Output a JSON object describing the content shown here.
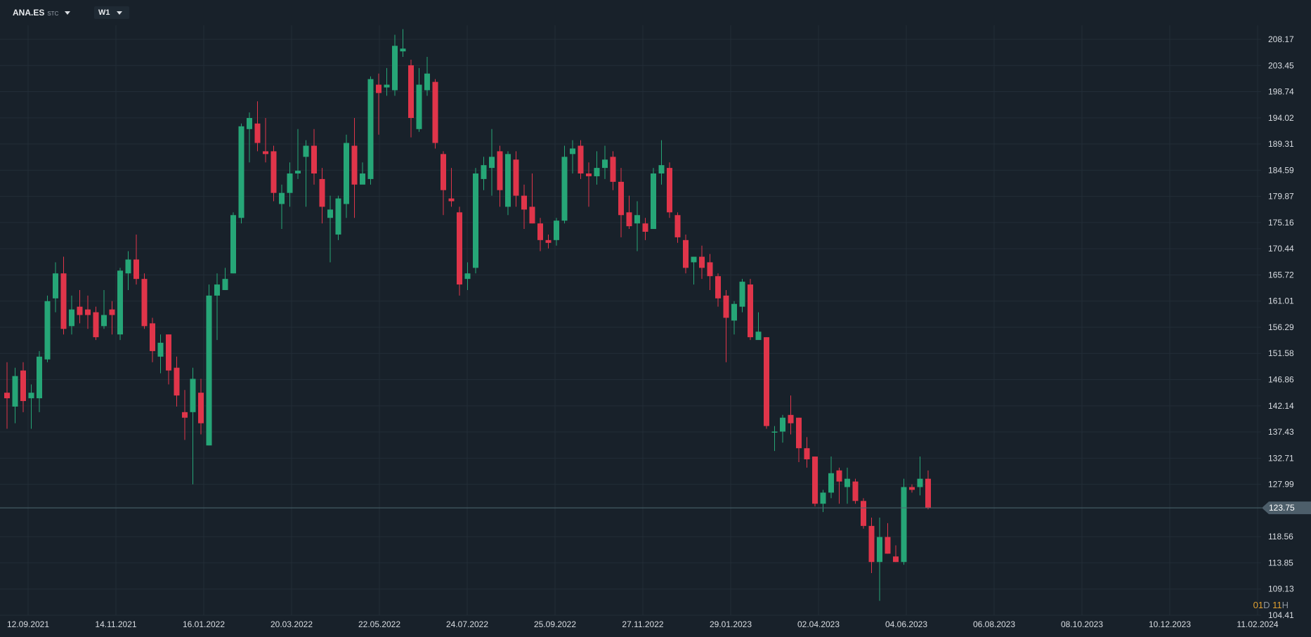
{
  "header": {
    "symbol": "ANA.ES",
    "exchange": "STC",
    "timeframe": "W1"
  },
  "countdown": {
    "days": "01",
    "days_unit": "D",
    "hours": "11",
    "hours_unit": "H"
  },
  "colors": {
    "up": "#26a677",
    "down": "#e0354a",
    "grid": "#222d37",
    "background": "#18212a",
    "price_line": "#4d6872",
    "price_tag": "#4d5e6a"
  },
  "chart_data": {
    "type": "candlestick",
    "grid": true,
    "y_axis_position": "right",
    "ylim": [
      104.41,
      210
    ],
    "y_ticks": [
      "208.17",
      "203.45",
      "198.74",
      "194.02",
      "189.31",
      "184.59",
      "179.87",
      "175.16",
      "170.44",
      "165.72",
      "161.01",
      "156.29",
      "151.58",
      "146.86",
      "142.14",
      "137.43",
      "132.71",
      "127.99",
      "118.56",
      "113.85",
      "109.13",
      "104.41"
    ],
    "x_ticks": [
      "12.09.2021",
      "14.11.2021",
      "16.01.2022",
      "20.03.2022",
      "22.05.2022",
      "24.07.2022",
      "25.09.2022",
      "27.11.2022",
      "29.01.2023",
      "02.04.2023",
      "04.06.2023",
      "06.08.2023",
      "08.10.2023",
      "10.12.2023",
      "11.02.2024"
    ],
    "current_price": "123.75",
    "candles": [
      {
        "date": "06.09.2021",
        "o": 144.5,
        "h": 150,
        "l": 138,
        "c": 143.5
      },
      {
        "date": "13.09.2021",
        "o": 142,
        "h": 149,
        "l": 139,
        "c": 147.5
      },
      {
        "date": "20.09.2021",
        "o": 148.5,
        "h": 150,
        "l": 141,
        "c": 143
      },
      {
        "date": "27.09.2021",
        "o": 143.5,
        "h": 146,
        "l": 138,
        "c": 144.5
      },
      {
        "date": "04.10.2021",
        "o": 143.5,
        "h": 152,
        "l": 141,
        "c": 151
      },
      {
        "date": "11.10.2021",
        "o": 150.5,
        "h": 162,
        "l": 150,
        "c": 161
      },
      {
        "date": "18.10.2021",
        "o": 161.5,
        "h": 168,
        "l": 159,
        "c": 166
      },
      {
        "date": "25.10.2021",
        "o": 166,
        "h": 169,
        "l": 155,
        "c": 156
      },
      {
        "date": "01.11.2021",
        "o": 156.5,
        "h": 162,
        "l": 155,
        "c": 159.5
      },
      {
        "date": "08.11.2021",
        "o": 160,
        "h": 163,
        "l": 157,
        "c": 158.5
      },
      {
        "date": "15.11.2021",
        "o": 159.5,
        "h": 162,
        "l": 156,
        "c": 158.5
      },
      {
        "date": "22.11.2021",
        "o": 159,
        "h": 160,
        "l": 154,
        "c": 154.5
      },
      {
        "date": "29.11.2021",
        "o": 156.5,
        "h": 163,
        "l": 156,
        "c": 158.5
      },
      {
        "date": "06.12.2021",
        "o": 159.5,
        "h": 161,
        "l": 155,
        "c": 158.5
      },
      {
        "date": "13.12.2021",
        "o": 155,
        "h": 167,
        "l": 154,
        "c": 166.5
      },
      {
        "date": "20.12.2021",
        "o": 166,
        "h": 170,
        "l": 163,
        "c": 168.5
      },
      {
        "date": "27.12.2021",
        "o": 168.5,
        "h": 173,
        "l": 164,
        "c": 165
      },
      {
        "date": "03.01.2022",
        "o": 165,
        "h": 166,
        "l": 156,
        "c": 156.5
      },
      {
        "date": "10.01.2022",
        "o": 157,
        "h": 158,
        "l": 150,
        "c": 152
      },
      {
        "date": "17.01.2022",
        "o": 151,
        "h": 155,
        "l": 148,
        "c": 153.5
      },
      {
        "date": "24.01.2022",
        "o": 155,
        "h": 155,
        "l": 146,
        "c": 148.5
      },
      {
        "date": "31.01.2022",
        "o": 149,
        "h": 151,
        "l": 142,
        "c": 144
      },
      {
        "date": "07.02.2022",
        "o": 141,
        "h": 145,
        "l": 136,
        "c": 140
      },
      {
        "date": "14.02.2022",
        "o": 141,
        "h": 149,
        "l": 128,
        "c": 147
      },
      {
        "date": "21.02.2022",
        "o": 144.5,
        "h": 147,
        "l": 137,
        "c": 139
      },
      {
        "date": "28.02.2022",
        "o": 135,
        "h": 164,
        "l": 135,
        "c": 162
      },
      {
        "date": "07.03.2022",
        "o": 162,
        "h": 166,
        "l": 154,
        "c": 164
      },
      {
        "date": "14.03.2022",
        "o": 163,
        "h": 167,
        "l": 163,
        "c": 165
      },
      {
        "date": "21.03.2022",
        "o": 166,
        "h": 177,
        "l": 166,
        "c": 176.5
      },
      {
        "date": "28.03.2022",
        "o": 176,
        "h": 193,
        "l": 175,
        "c": 192.5
      },
      {
        "date": "04.04.2022",
        "o": 192,
        "h": 195,
        "l": 186,
        "c": 194
      },
      {
        "date": "11.04.2022",
        "o": 193,
        "h": 197,
        "l": 188,
        "c": 189.5
      },
      {
        "date": "18.04.2022",
        "o": 188,
        "h": 194,
        "l": 186,
        "c": 187.5
      },
      {
        "date": "25.04.2022",
        "o": 188,
        "h": 189,
        "l": 179,
        "c": 180.5
      },
      {
        "date": "02.05.2022",
        "o": 178.5,
        "h": 182,
        "l": 174,
        "c": 180.5
      },
      {
        "date": "09.05.2022",
        "o": 180.5,
        "h": 186,
        "l": 178,
        "c": 184
      },
      {
        "date": "16.05.2022",
        "o": 184,
        "h": 192,
        "l": 183,
        "c": 184.5
      },
      {
        "date": "23.05.2022",
        "o": 187,
        "h": 190,
        "l": 178,
        "c": 189
      },
      {
        "date": "30.05.2022",
        "o": 189,
        "h": 192,
        "l": 182,
        "c": 184
      },
      {
        "date": "06.06.2022",
        "o": 183,
        "h": 185,
        "l": 175,
        "c": 178
      },
      {
        "date": "13.06.2022",
        "o": 176,
        "h": 180,
        "l": 168,
        "c": 177.5
      },
      {
        "date": "20.06.2022",
        "o": 173,
        "h": 180,
        "l": 172,
        "c": 179.5
      },
      {
        "date": "27.06.2022",
        "o": 178.5,
        "h": 191,
        "l": 176,
        "c": 189.5
      },
      {
        "date": "04.07.2022",
        "o": 189,
        "h": 194,
        "l": 176,
        "c": 182
      },
      {
        "date": "11.07.2022",
        "o": 182,
        "h": 186,
        "l": 183,
        "c": 184
      },
      {
        "date": "18.07.2022",
        "o": 183,
        "h": 201.5,
        "l": 182,
        "c": 201
      },
      {
        "date": "25.07.2022",
        "o": 200,
        "h": 202,
        "l": 191,
        "c": 198.5
      },
      {
        "date": "01.08.2022",
        "o": 199.5,
        "h": 203,
        "l": 198,
        "c": 200
      },
      {
        "date": "08.08.2022",
        "o": 199,
        "h": 209,
        "l": 198,
        "c": 207
      },
      {
        "date": "15.08.2022",
        "o": 206,
        "h": 210,
        "l": 205,
        "c": 206.5
      },
      {
        "date": "22.08.2022",
        "o": 203.5,
        "h": 204.5,
        "l": 190.5,
        "c": 194
      },
      {
        "date": "29.08.2022",
        "o": 192,
        "h": 203,
        "l": 191.5,
        "c": 200
      },
      {
        "date": "05.09.2022",
        "o": 199,
        "h": 205,
        "l": 198,
        "c": 202
      },
      {
        "date": "12.09.2022",
        "o": 200.5,
        "h": 201,
        "l": 188.5,
        "c": 189.5
      },
      {
        "date": "19.09.2022",
        "o": 187.5,
        "h": 188,
        "l": 176.5,
        "c": 181
      },
      {
        "date": "26.09.2022",
        "o": 179.5,
        "h": 185,
        "l": 178,
        "c": 179
      },
      {
        "date": "03.10.2022",
        "o": 177,
        "h": 178,
        "l": 162,
        "c": 164
      },
      {
        "date": "10.10.2022",
        "o": 165,
        "h": 168,
        "l": 163,
        "c": 166
      },
      {
        "date": "17.10.2022",
        "o": 167,
        "h": 185,
        "l": 166,
        "c": 184
      },
      {
        "date": "24.10.2022",
        "o": 183,
        "h": 187,
        "l": 181,
        "c": 185.5
      },
      {
        "date": "31.10.2022",
        "o": 185,
        "h": 192,
        "l": 180,
        "c": 187
      },
      {
        "date": "07.11.2022",
        "o": 188,
        "h": 189,
        "l": 178,
        "c": 181
      },
      {
        "date": "14.11.2022",
        "o": 178,
        "h": 188,
        "l": 176.5,
        "c": 187.5
      },
      {
        "date": "21.11.2022",
        "o": 186.5,
        "h": 188,
        "l": 178,
        "c": 180
      },
      {
        "date": "28.11.2022",
        "o": 180,
        "h": 182,
        "l": 174,
        "c": 177.5
      },
      {
        "date": "05.12.2022",
        "o": 178,
        "h": 184,
        "l": 175,
        "c": 175
      },
      {
        "date": "12.12.2022",
        "o": 175,
        "h": 176,
        "l": 170,
        "c": 172
      },
      {
        "date": "19.12.2022",
        "o": 172,
        "h": 173,
        "l": 170.5,
        "c": 171.5
      },
      {
        "date": "26.12.2022",
        "o": 172,
        "h": 176,
        "l": 171,
        "c": 175.5
      },
      {
        "date": "02.01.2023",
        "o": 175.5,
        "h": 189,
        "l": 175,
        "c": 187
      },
      {
        "date": "09.01.2023",
        "o": 187.5,
        "h": 190,
        "l": 184,
        "c": 188.5
      },
      {
        "date": "16.01.2023",
        "o": 189,
        "h": 190,
        "l": 183,
        "c": 184
      },
      {
        "date": "23.01.2023",
        "o": 184,
        "h": 186,
        "l": 178,
        "c": 183.5
      },
      {
        "date": "30.01.2023",
        "o": 183.5,
        "h": 188,
        "l": 182,
        "c": 185
      },
      {
        "date": "06.02.2023",
        "o": 185,
        "h": 189,
        "l": 183,
        "c": 186.5
      },
      {
        "date": "13.02.2023",
        "o": 187,
        "h": 188,
        "l": 181,
        "c": 182.5
      },
      {
        "date": "20.02.2023",
        "o": 182.5,
        "h": 185,
        "l": 172.5,
        "c": 176.5
      },
      {
        "date": "27.02.2023",
        "o": 177,
        "h": 180,
        "l": 174,
        "c": 174.5
      },
      {
        "date": "06.03.2023",
        "o": 175,
        "h": 179,
        "l": 170,
        "c": 176.5
      },
      {
        "date": "13.03.2023",
        "o": 175,
        "h": 176,
        "l": 172,
        "c": 173.5
      },
      {
        "date": "20.03.2023",
        "o": 174,
        "h": 185,
        "l": 174,
        "c": 184
      },
      {
        "date": "27.03.2023",
        "o": 184,
        "h": 190,
        "l": 182,
        "c": 185.5
      },
      {
        "date": "03.04.2023",
        "o": 185,
        "h": 186,
        "l": 176,
        "c": 177
      },
      {
        "date": "10.04.2023",
        "o": 176.5,
        "h": 177,
        "l": 171.5,
        "c": 172.5
      },
      {
        "date": "17.04.2023",
        "o": 172,
        "h": 173,
        "l": 166,
        "c": 167
      },
      {
        "date": "24.04.2023",
        "o": 168,
        "h": 169,
        "l": 164,
        "c": 169
      },
      {
        "date": "01.05.2023",
        "o": 169,
        "h": 171,
        "l": 165,
        "c": 167
      },
      {
        "date": "08.05.2023",
        "o": 168,
        "h": 169.5,
        "l": 163,
        "c": 165.5
      },
      {
        "date": "15.05.2023",
        "o": 165.5,
        "h": 166,
        "l": 160,
        "c": 161.5
      },
      {
        "date": "22.05.2023",
        "o": 162,
        "h": 163,
        "l": 150,
        "c": 158
      },
      {
        "date": "29.05.2023",
        "o": 157.5,
        "h": 161,
        "l": 155,
        "c": 160.5
      },
      {
        "date": "05.06.2023",
        "o": 160,
        "h": 165,
        "l": 159,
        "c": 164.5
      },
      {
        "date": "12.06.2023",
        "o": 164,
        "h": 165,
        "l": 154,
        "c": 154.5
      },
      {
        "date": "19.06.2023",
        "o": 154,
        "h": 159,
        "l": 155,
        "c": 155.5
      },
      {
        "date": "26.06.2023",
        "o": 154.5,
        "h": 154.5,
        "l": 138,
        "c": 138.5
      },
      {
        "date": "03.07.2023",
        "o": 137.5,
        "h": 138.5,
        "l": 134,
        "c": 137.5
      },
      {
        "date": "10.07.2023",
        "o": 137.5,
        "h": 140.5,
        "l": 135.5,
        "c": 140
      },
      {
        "date": "17.07.2023",
        "o": 140.5,
        "h": 144,
        "l": 137,
        "c": 139
      },
      {
        "date": "24.07.2023",
        "o": 140,
        "h": 140,
        "l": 132,
        "c": 134.5
      },
      {
        "date": "31.07.2023",
        "o": 134.5,
        "h": 136.5,
        "l": 131,
        "c": 132.5
      },
      {
        "date": "07.08.2023",
        "o": 133,
        "h": 133,
        "l": 124,
        "c": 124.5
      },
      {
        "date": "14.08.2023",
        "o": 124.5,
        "h": 127,
        "l": 123,
        "c": 126.5
      },
      {
        "date": "21.08.2023",
        "o": 126.5,
        "h": 133,
        "l": 125.5,
        "c": 130
      },
      {
        "date": "28.08.2023",
        "o": 130.5,
        "h": 131,
        "l": 124.5,
        "c": 128.5
      },
      {
        "date": "04.09.2023",
        "o": 127.5,
        "h": 131,
        "l": 124.5,
        "c": 129
      },
      {
        "date": "11.09.2023",
        "o": 128.5,
        "h": 129,
        "l": 124.5,
        "c": 125
      },
      {
        "date": "18.09.2023",
        "o": 125,
        "h": 125.5,
        "l": 120,
        "c": 120.5
      },
      {
        "date": "25.09.2023",
        "o": 120.5,
        "h": 122,
        "l": 112,
        "c": 114
      },
      {
        "date": "02.10.2023",
        "o": 114,
        "h": 122,
        "l": 107,
        "c": 118.5
      },
      {
        "date": "09.10.2023",
        "o": 118.5,
        "h": 121,
        "l": 115.5,
        "c": 115.5
      },
      {
        "date": "16.10.2023",
        "o": 115,
        "h": 117,
        "l": 114,
        "c": 114
      },
      {
        "date": "23.10.2023",
        "o": 114,
        "h": 129,
        "l": 113.5,
        "c": 127.5
      },
      {
        "date": "30.10.2023",
        "o": 127.5,
        "h": 128,
        "l": 126.5,
        "c": 127
      },
      {
        "date": "06.11.2023",
        "o": 127.5,
        "h": 133,
        "l": 126,
        "c": 129
      },
      {
        "date": "13.11.2023",
        "o": 129,
        "h": 130.5,
        "l": 123.5,
        "c": 123.75
      }
    ]
  }
}
